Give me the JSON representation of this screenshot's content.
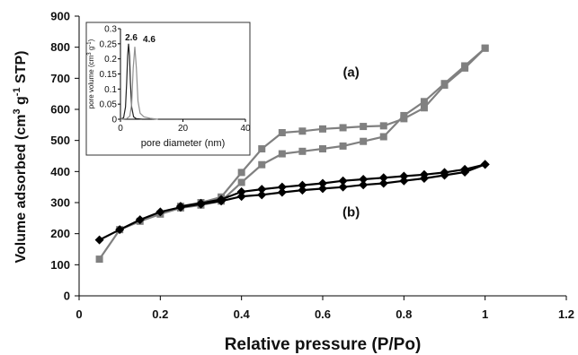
{
  "chart_data": [
    {
      "type": "line",
      "xlabel": "Relative pressure (P/Po)",
      "ylabel": "Volume adsorbed (cm3 g-1 STP)",
      "ylabel_parts": [
        "Volume adsorbed (cm",
        "3",
        " g",
        "-1",
        " STP)"
      ],
      "xlim": [
        0,
        1.2
      ],
      "ylim": [
        0,
        900
      ],
      "xticks": [
        0,
        0.2,
        0.4,
        0.6,
        0.8,
        1,
        1.2
      ],
      "yticks": [
        0,
        100,
        200,
        300,
        400,
        500,
        600,
        700,
        800,
        900
      ],
      "xtick_labels": [
        "0",
        "0.2",
        "0.4",
        "0.6",
        "0.8",
        "1",
        "1.2"
      ],
      "ytick_labels": [
        "0",
        "100",
        "200",
        "300",
        "400",
        "500",
        "600",
        "700",
        "800",
        "900"
      ],
      "grid": false,
      "annotations": [
        {
          "text": "(a)",
          "x": 0.67,
          "y": 705
        },
        {
          "text": "(b)",
          "x": 0.67,
          "y": 255
        }
      ],
      "series": [
        {
          "marker": "square",
          "color": "#808080",
          "x": [
            0.05,
            0.1,
            0.15,
            0.2,
            0.25,
            0.3,
            0.35,
            0.4,
            0.45,
            0.5,
            0.55,
            0.6,
            0.65,
            0.7,
            0.75,
            0.8,
            0.85,
            0.9,
            0.95,
            1.0
          ],
          "y": [
            118,
            213,
            240,
            263,
            283,
            292,
            305,
            365,
            422,
            457,
            465,
            473,
            482,
            497,
            512,
            580,
            625,
            683,
            740,
            797
          ]
        },
        {
          "marker": "square",
          "color": "#808080",
          "x": [
            1.0,
            0.95,
            0.9,
            0.85,
            0.8,
            0.75,
            0.7,
            0.65,
            0.6,
            0.55,
            0.5,
            0.45,
            0.4,
            0.35,
            0.3,
            0.25
          ],
          "y": [
            797,
            733,
            678,
            605,
            570,
            547,
            545,
            541,
            537,
            530,
            525,
            473,
            397,
            318,
            300,
            288
          ]
        },
        {
          "marker": "diamond",
          "color": "#000000",
          "x": [
            0.05,
            0.1,
            0.15,
            0.2,
            0.25,
            0.3,
            0.35,
            0.4,
            0.45,
            0.5,
            0.55,
            0.6,
            0.65,
            0.7,
            0.75,
            0.8,
            0.85,
            0.9,
            0.95,
            1.0
          ],
          "y": [
            180,
            213,
            245,
            270,
            285,
            295,
            305,
            320,
            325,
            333,
            340,
            345,
            350,
            357,
            362,
            370,
            378,
            388,
            398,
            423
          ]
        },
        {
          "marker": "diamond",
          "color": "#000000",
          "x": [
            1.0,
            0.95,
            0.9,
            0.85,
            0.8,
            0.75,
            0.7,
            0.65,
            0.6,
            0.55,
            0.5,
            0.45,
            0.4,
            0.35,
            0.3,
            0.25
          ],
          "y": [
            423,
            407,
            397,
            390,
            385,
            380,
            375,
            370,
            362,
            356,
            350,
            343,
            335,
            310,
            298,
            288
          ]
        }
      ]
    },
    {
      "type": "line",
      "xlabel": "pore diameter (nm)",
      "ylabel": "pore volume (cm3 g-1)",
      "ylabel_parts": [
        "pore volume (cm",
        "3",
        " g",
        "-1",
        ")"
      ],
      "xlim": [
        0,
        40
      ],
      "ylim": [
        0,
        0.3
      ],
      "xticks": [
        0,
        20,
        40
      ],
      "yticks": [
        0,
        0.05,
        0.1,
        0.15,
        0.2,
        0.25,
        0.3
      ],
      "xtick_labels": [
        "0",
        "20",
        "40"
      ],
      "ytick_labels": [
        "0",
        "0.05",
        "0.1",
        "0.15",
        "0.2",
        "0.25",
        "0.3"
      ],
      "annotations": [
        {
          "text": "2.6",
          "x": 2.6
        },
        {
          "text": "4.6",
          "x": 4.6
        }
      ],
      "series": [
        {
          "color": "#222222",
          "x": [
            0,
            1.0,
            1.6,
            2.0,
            2.3,
            2.6,
            2.9,
            3.2,
            3.6,
            4.2,
            5.0,
            7,
            10
          ],
          "y": [
            0,
            0.005,
            0.04,
            0.12,
            0.21,
            0.25,
            0.21,
            0.12,
            0.04,
            0.008,
            0.002,
            0,
            0
          ]
        },
        {
          "color": "#909090",
          "x": [
            0,
            2.0,
            3.0,
            3.6,
            4.1,
            4.6,
            5.1,
            5.6,
            6.3,
            7.5,
            9.5,
            12
          ],
          "y": [
            0,
            0.002,
            0.01,
            0.05,
            0.17,
            0.24,
            0.17,
            0.06,
            0.02,
            0.008,
            0.003,
            0
          ]
        }
      ]
    }
  ]
}
